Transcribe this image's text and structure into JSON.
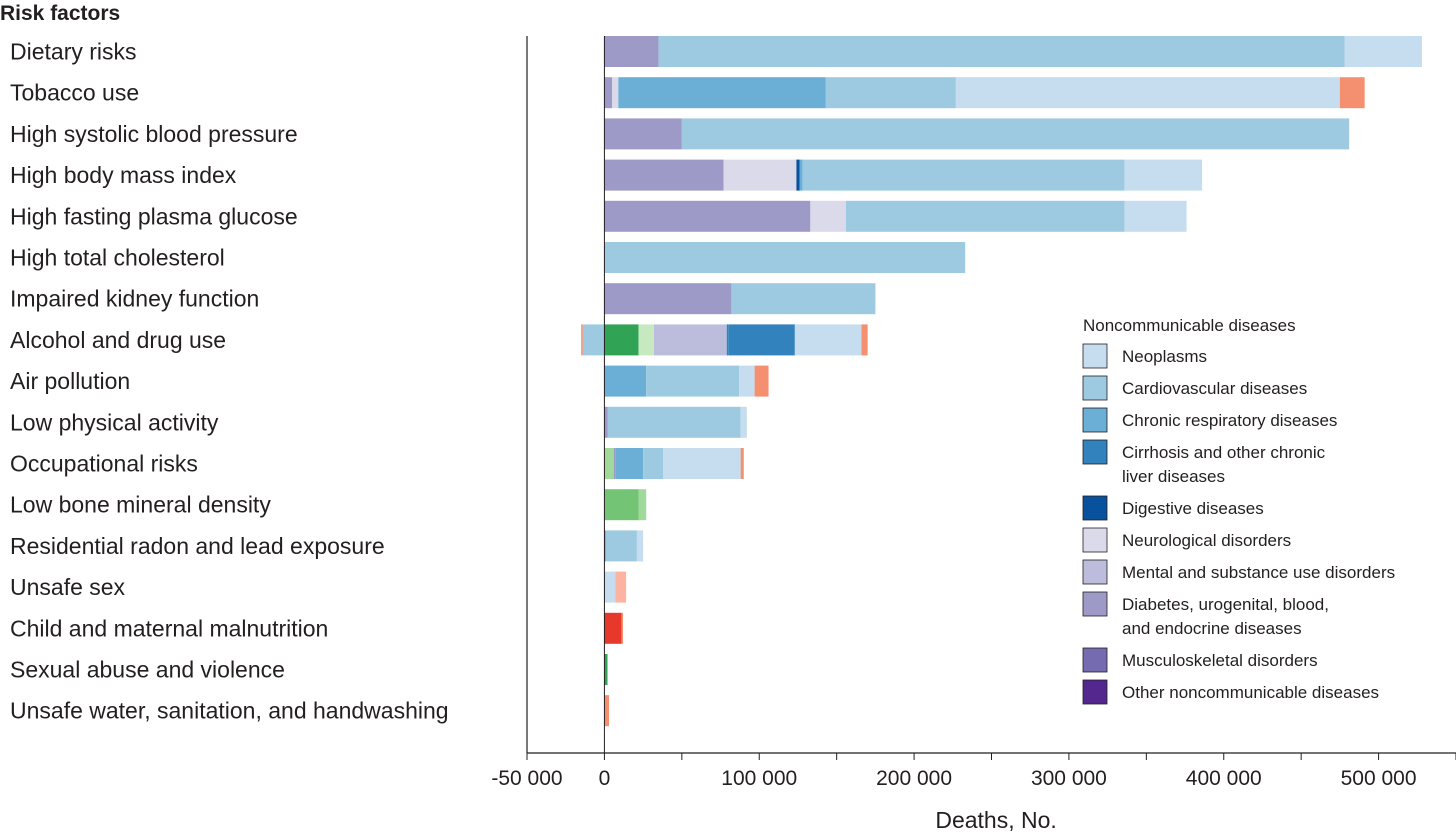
{
  "chart_data": {
    "type": "bar",
    "orientation": "horizontal",
    "stacked": true,
    "row_header": "Risk factors",
    "xlabel": "Deaths, No.",
    "xlim": [
      -50000,
      550000
    ],
    "xticks": [
      -50000,
      0,
      100000,
      200000,
      300000,
      400000,
      500000
    ],
    "xtick_labels": [
      "-50 000",
      "0",
      "100 000",
      "200 000",
      "300 000",
      "400 000",
      "500 000"
    ],
    "legend": {
      "title": "Noncommunicable diseases",
      "placement": "right",
      "entries": [
        {
          "lines": [
            "Neoplasms"
          ],
          "color": "#c5ddef"
        },
        {
          "lines": [
            "Cardiovascular diseases"
          ],
          "color": "#9ecae1"
        },
        {
          "lines": [
            "Chronic respiratory diseases"
          ],
          "color": "#6baed6"
        },
        {
          "lines": [
            "Cirrhosis and other chronic",
            "liver diseases"
          ],
          "color": "#3182bd"
        },
        {
          "lines": [
            "Digestive diseases"
          ],
          "color": "#08519c"
        },
        {
          "lines": [
            "Neurological disorders"
          ],
          "color": "#dadaeb"
        },
        {
          "lines": [
            "Mental and substance use disorders"
          ],
          "color": "#bcbddc"
        },
        {
          "lines": [
            "Diabetes, urogenital, blood,",
            "and endocrine diseases"
          ],
          "color": "#9e9ac8"
        },
        {
          "lines": [
            "Musculoskeletal disorders"
          ],
          "color": "#756bb1"
        },
        {
          "lines": [
            "Other noncommunicable diseases"
          ],
          "color": "#54278f"
        }
      ]
    },
    "categories": [
      "Dietary risks",
      "Tobacco use",
      "High systolic blood pressure",
      "High body mass index",
      "High fasting plasma glucose",
      "High total cholesterol",
      "Impaired kidney function",
      "Alcohol and drug use",
      "Air pollution",
      "Low physical activity",
      "Occupational risks",
      "Low bone mineral density",
      "Residential radon and lead exposure",
      "Unsafe sex",
      "Child and maternal malnutrition",
      "Sexual abuse and violence",
      "Unsafe water, sanitation, and handwashing"
    ],
    "stacks": [
      [
        {
          "value": 35000,
          "color": "#9e9ac8"
        },
        {
          "value": 443000,
          "color": "#9ecae1"
        },
        {
          "value": 50000,
          "color": "#c5ddef"
        }
      ],
      [
        {
          "value": 5000,
          "color": "#9e9ac8"
        },
        {
          "value": 4000,
          "color": "#dadaeb"
        },
        {
          "value": 134000,
          "color": "#6baed6"
        },
        {
          "value": 84000,
          "color": "#9ecae1"
        },
        {
          "value": 248000,
          "color": "#c5ddef"
        },
        {
          "value": 16000,
          "color": "#f4906f"
        }
      ],
      [
        {
          "value": 50000,
          "color": "#9e9ac8"
        },
        {
          "value": 431000,
          "color": "#9ecae1"
        }
      ],
      [
        {
          "value": 77000,
          "color": "#9e9ac8"
        },
        {
          "value": 47000,
          "color": "#dadaeb"
        },
        {
          "value": 2000,
          "color": "#08519c"
        },
        {
          "value": 2000,
          "color": "#6baed6"
        },
        {
          "value": 208000,
          "color": "#9ecae1"
        },
        {
          "value": 50000,
          "color": "#c5ddef"
        }
      ],
      [
        {
          "value": 133000,
          "color": "#9e9ac8"
        },
        {
          "value": 23000,
          "color": "#dadaeb"
        },
        {
          "value": 180000,
          "color": "#9ecae1"
        },
        {
          "value": 40000,
          "color": "#c5ddef"
        }
      ],
      [
        {
          "value": 233000,
          "color": "#9ecae1"
        }
      ],
      [
        {
          "value": 82000,
          "color": "#9e9ac8"
        },
        {
          "value": 93000,
          "color": "#9ecae1"
        }
      ],
      [
        {
          "value": -14000,
          "color": "#9ecae1"
        },
        {
          "value": -1000,
          "color": "#f4906f"
        },
        {
          "value": 22000,
          "color": "#31a354"
        },
        {
          "value": 10000,
          "color": "#c7e9c0"
        },
        {
          "value": 47000,
          "color": "#bcbddc"
        },
        {
          "value": 1000,
          "color": "#3182bd"
        },
        {
          "value": 43000,
          "color": "#3182bd"
        },
        {
          "value": 43000,
          "color": "#c5ddef"
        },
        {
          "value": 4000,
          "color": "#f4906f"
        }
      ],
      [
        {
          "value": 27000,
          "color": "#6baed6"
        },
        {
          "value": 60000,
          "color": "#9ecae1"
        },
        {
          "value": 10000,
          "color": "#c5ddef"
        },
        {
          "value": 9000,
          "color": "#f4906f"
        }
      ],
      [
        {
          "value": 2000,
          "color": "#9e9ac8"
        },
        {
          "value": 86000,
          "color": "#9ecae1"
        },
        {
          "value": 4000,
          "color": "#c5ddef"
        }
      ],
      [
        {
          "value": 6000,
          "color": "#a1d99b"
        },
        {
          "value": 1000,
          "color": "#9e9ac8"
        },
        {
          "value": 18000,
          "color": "#6baed6"
        },
        {
          "value": 13000,
          "color": "#9ecae1"
        },
        {
          "value": 50000,
          "color": "#c5ddef"
        },
        {
          "value": 2000,
          "color": "#f4906f"
        }
      ],
      [
        {
          "value": 22000,
          "color": "#74c476"
        },
        {
          "value": 5000,
          "color": "#a1d99b"
        }
      ],
      [
        {
          "value": 1000,
          "color": "#9e9ac8"
        },
        {
          "value": 20000,
          "color": "#9ecae1"
        },
        {
          "value": 4000,
          "color": "#c5ddef"
        }
      ],
      [
        {
          "value": 7000,
          "color": "#c5ddef"
        },
        {
          "value": 7000,
          "color": "#fcb3a1"
        }
      ],
      [
        {
          "value": 11000,
          "color": "#e6382b"
        },
        {
          "value": 1000,
          "color": "#f4906f"
        }
      ],
      [
        {
          "value": 2000,
          "color": "#31a354"
        }
      ],
      [
        {
          "value": 3000,
          "color": "#f4906f"
        }
      ]
    ]
  }
}
